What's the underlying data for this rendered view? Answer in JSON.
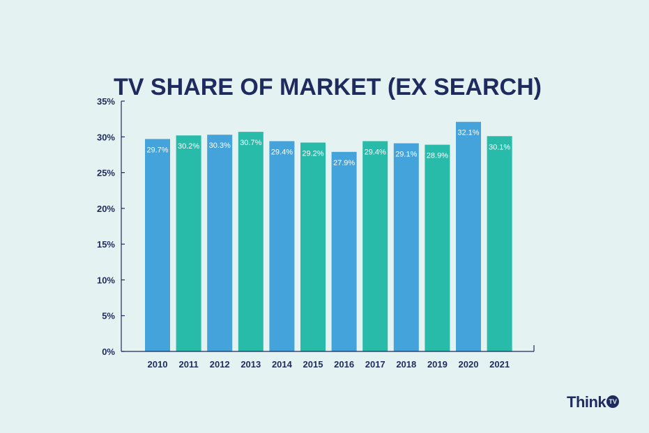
{
  "colors": {
    "background": "#e4f3f1",
    "navy": "#1f2a5e",
    "blue_bar": "#45a3dc",
    "green_bar": "#28bbaa",
    "bar_label": "#ffffff"
  },
  "chart_data": {
    "type": "bar",
    "title": "TV SHARE OF MARKET (EX SEARCH)",
    "xlabel": "",
    "ylabel": "",
    "ylim": [
      0,
      35
    ],
    "yticks": [
      0,
      5,
      10,
      15,
      20,
      25,
      30,
      35
    ],
    "ytick_labels": [
      "0%",
      "5%",
      "10%",
      "15%",
      "20%",
      "25%",
      "30%",
      "35%"
    ],
    "categories": [
      "2010",
      "2011",
      "2012",
      "2013",
      "2014",
      "2015",
      "2016",
      "2017",
      "2018",
      "2019",
      "2020",
      "2021"
    ],
    "values": [
      29.7,
      30.2,
      30.3,
      30.7,
      29.4,
      29.2,
      27.9,
      29.4,
      29.1,
      28.9,
      32.1,
      30.1
    ],
    "value_labels": [
      "29.7%",
      "30.2%",
      "30.3%",
      "30.7%",
      "29.4%",
      "29.2%",
      "27.9%",
      "29.4%",
      "29.1%",
      "28.9%",
      "32.1%",
      "30.1%"
    ],
    "bar_colors": [
      "#45a3dc",
      "#28bbaa",
      "#45a3dc",
      "#28bbaa",
      "#45a3dc",
      "#28bbaa",
      "#45a3dc",
      "#28bbaa",
      "#45a3dc",
      "#28bbaa",
      "#45a3dc",
      "#28bbaa"
    ],
    "grid": false,
    "legend": "none"
  },
  "logo": {
    "text": "Think",
    "badge": "TV"
  }
}
